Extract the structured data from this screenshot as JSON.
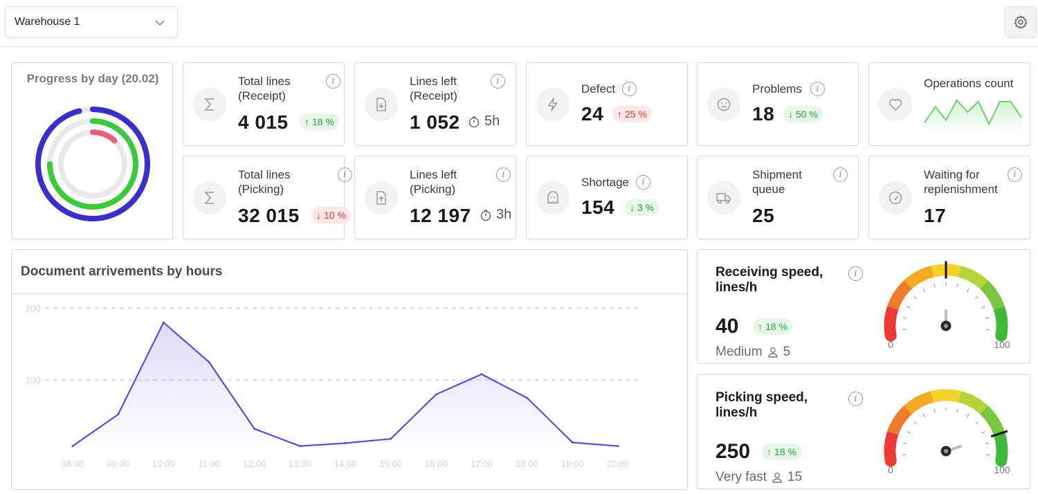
{
  "header": {
    "warehouse": "Warehouse 1"
  },
  "progress": {
    "title": "Progress by day (20.02)",
    "rings": [
      {
        "name": "outer",
        "value": 0.96,
        "color": "#3b2fc9"
      },
      {
        "name": "middle",
        "value": 0.75,
        "color": "#3cc93c"
      },
      {
        "name": "inner",
        "value": 0.12,
        "color": "#e8617a"
      }
    ]
  },
  "kpis": {
    "total_receipt": {
      "label1": "Total lines",
      "label2": "(Receipt)",
      "value": "4 015",
      "badge": "18 %",
      "trend": "up"
    },
    "left_receipt": {
      "label1": "Lines left",
      "label2": "(Receipt)",
      "value": "1 052",
      "eta": "5h"
    },
    "defect": {
      "label": "Defect",
      "value": "24",
      "badge": "25 %",
      "trend": "up-bad"
    },
    "problems": {
      "label": "Problems",
      "value": "18",
      "badge": "50 %",
      "trend": "down-good"
    },
    "operations": {
      "label": "Operations count",
      "spark": [
        10,
        34,
        14,
        44,
        26,
        42,
        8,
        42,
        42,
        18
      ]
    },
    "total_picking": {
      "label1": "Total lines",
      "label2": "(Picking)",
      "value": "32 015",
      "badge": "10 %",
      "trend": "down"
    },
    "left_picking": {
      "label1": "Lines left",
      "label2": "(Picking)",
      "value": "12 197",
      "eta": "3h"
    },
    "shortage": {
      "label": "Shortage",
      "value": "154",
      "badge": "3 %",
      "trend": "down-good"
    },
    "shipment": {
      "label1": "Shipment",
      "label2": "queue",
      "value": "25"
    },
    "waiting": {
      "label1": "Waiting for",
      "label2": "replenishment",
      "value": "17"
    }
  },
  "chart_data": {
    "type": "area",
    "title": "Document arrivements by hours",
    "x": [
      "08:00",
      "09:00",
      "10:00",
      "11:00",
      "12:00",
      "13:00",
      "14:00",
      "15:00",
      "16:00",
      "17:00",
      "18:00",
      "19:00",
      "20:00"
    ],
    "values": [
      8,
      52,
      180,
      125,
      32,
      8,
      12,
      18,
      80,
      108,
      75,
      13,
      8
    ],
    "yticks": [
      100,
      200
    ],
    "ylim": [
      0,
      210
    ],
    "color": "#5b4bd6"
  },
  "receiving": {
    "title": "Receiving speed, lines/h",
    "value": "40",
    "badge": "18 %",
    "level": "Medium",
    "workers": "5",
    "gauge_value": 50,
    "min": "0",
    "max": "100"
  },
  "picking": {
    "title": "Picking speed, lines/h",
    "value": "250",
    "badge": "18 %",
    "level": "Very fast",
    "workers": "15",
    "gauge_value": 86,
    "min": "0",
    "max": "100"
  }
}
